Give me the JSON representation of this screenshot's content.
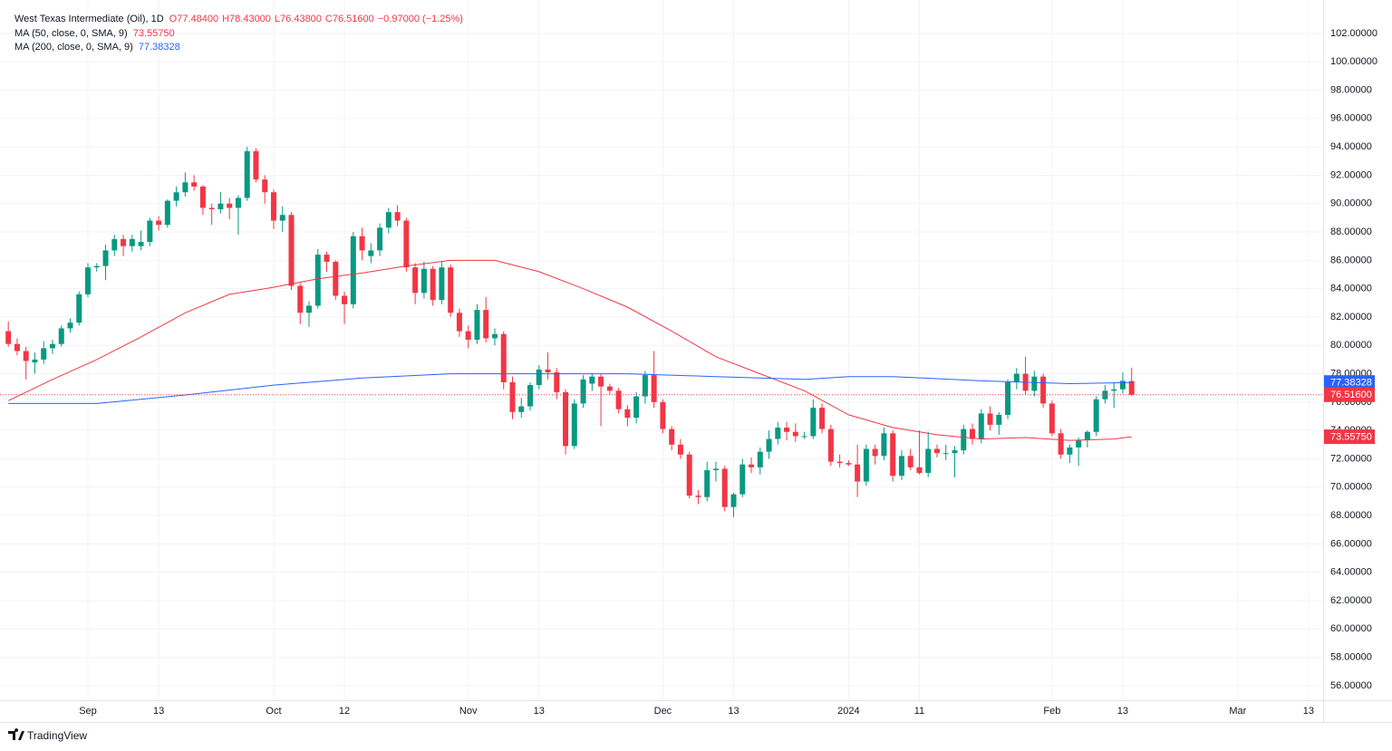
{
  "chart_data": {
    "type": "candlestick",
    "title": "West Texas Intermediate (Oil), 1D",
    "ohlc_labels": [
      "O77.48400",
      "H78.43000",
      "L76.43800",
      "C76.51600",
      "−0.97000 (−1.25%)"
    ],
    "up_color": "#089981",
    "down_color": "#f23645",
    "candles": {
      "open": [
        81.0,
        80.1,
        79.6,
        78.8,
        79.0,
        79.8,
        80.1,
        81.2,
        81.6,
        83.6,
        85.5,
        85.6,
        86.7,
        87.5,
        87.0,
        87.0,
        87.3,
        88.8,
        88.5,
        90.2,
        90.8,
        91.5,
        91.2,
        89.7,
        89.6,
        90.0,
        89.7,
        90.4,
        93.7,
        91.7,
        90.8,
        88.8,
        89.2,
        84.2,
        82.3,
        82.8,
        86.4,
        85.9,
        83.5,
        82.9,
        87.7,
        86.3,
        86.7,
        88.3,
        89.4,
        88.8,
        85.5,
        83.7,
        85.4,
        83.2,
        85.5,
        82.3,
        81.0,
        80.4,
        82.5,
        80.5,
        80.8,
        77.4,
        75.3,
        75.7,
        77.2,
        78.3,
        78.1,
        76.7,
        72.9,
        75.9,
        77.3,
        77.8,
        77.1,
        76.8,
        75.5,
        74.9,
        76.4,
        77.9,
        76.0,
        74.1,
        73.0,
        72.3,
        69.4,
        69.3,
        71.2,
        71.3,
        68.6,
        69.5,
        71.6,
        71.4,
        72.5,
        73.4,
        74.2,
        73.9,
        73.6,
        73.6,
        75.6,
        74.1,
        71.8,
        71.7,
        71.6,
        70.4,
        72.7,
        72.2,
        73.8,
        70.8,
        72.2,
        71.4,
        71.0,
        72.7,
        72.4,
        72.4,
        72.6,
        74.1,
        73.4,
        75.2,
        74.4,
        75.1,
        77.4,
        78.0,
        76.8,
        77.8,
        75.9,
        73.8,
        72.3,
        72.8,
        73.3,
        73.9,
        76.2,
        76.8,
        76.9,
        77.484
      ],
      "high": [
        81.7,
        80.5,
        79.9,
        79.5,
        80.3,
        80.4,
        81.4,
        81.9,
        83.8,
        85.8,
        85.8,
        87.1,
        87.8,
        87.8,
        87.8,
        88.1,
        89.0,
        89.1,
        90.3,
        91.2,
        92.2,
        92.0,
        91.3,
        90.0,
        90.8,
        90.4,
        90.6,
        94.0,
        93.9,
        92.0,
        91.0,
        89.8,
        89.4,
        84.4,
        83.1,
        86.8,
        86.6,
        86.0,
        83.8,
        88.0,
        88.3,
        87.2,
        88.6,
        89.7,
        89.9,
        89.0,
        85.8,
        85.9,
        85.6,
        85.9,
        85.7,
        82.6,
        81.4,
        82.9,
        83.4,
        81.2,
        81.0,
        77.8,
        76.3,
        77.4,
        78.6,
        79.5,
        78.4,
        76.9,
        76.2,
        77.9,
        78.0,
        78.0,
        77.3,
        77.0,
        75.8,
        76.7,
        78.2,
        79.6,
        76.2,
        74.3,
        73.4,
        72.5,
        69.8,
        71.8,
        71.8,
        71.5,
        69.6,
        72.0,
        72.1,
        72.8,
        74.0,
        74.6,
        74.6,
        74.5,
        73.9,
        76.2,
        75.9,
        74.4,
        72.3,
        71.9,
        73.0,
        73.0,
        73.0,
        74.2,
        74.0,
        72.6,
        72.7,
        74.0,
        73.9,
        73.0,
        73.0,
        72.9,
        74.4,
        74.5,
        75.5,
        75.7,
        75.3,
        77.6,
        78.4,
        79.2,
        78.2,
        78.0,
        76.1,
        74.1,
        73.0,
        73.5,
        74.0,
        76.4,
        77.2,
        77.4,
        78.1,
        78.43
      ],
      "low": [
        79.9,
        79.3,
        77.6,
        78.0,
        78.7,
        79.4,
        79.9,
        80.9,
        81.4,
        83.4,
        85.2,
        84.6,
        86.3,
        86.3,
        86.6,
        86.7,
        87.0,
        88.1,
        88.3,
        89.8,
        90.5,
        90.9,
        89.2,
        88.5,
        89.3,
        88.9,
        87.8,
        90.2,
        91.5,
        90.0,
        88.2,
        88.0,
        83.9,
        81.5,
        81.3,
        82.6,
        85.2,
        83.2,
        81.5,
        82.6,
        86.0,
        85.8,
        86.3,
        87.9,
        88.4,
        85.2,
        82.9,
        83.3,
        82.8,
        82.9,
        82.0,
        80.6,
        79.8,
        80.1,
        80.2,
        80.0,
        76.9,
        74.8,
        74.9,
        75.4,
        76.9,
        77.6,
        76.2,
        72.3,
        72.7,
        75.6,
        76.8,
        74.3,
        76.5,
        75.2,
        74.3,
        74.5,
        75.9,
        75.6,
        73.8,
        72.6,
        72.0,
        69.2,
        68.8,
        69.0,
        70.4,
        68.3,
        67.9,
        69.3,
        71.0,
        70.9,
        72.0,
        73.0,
        73.3,
        73.2,
        73.4,
        73.4,
        73.8,
        71.5,
        71.4,
        71.5,
        69.3,
        70.1,
        71.6,
        71.9,
        70.4,
        70.5,
        71.2,
        70.9,
        70.7,
        72.1,
        71.9,
        70.7,
        72.3,
        73.0,
        73.1,
        74.0,
        73.7,
        74.8,
        76.9,
        76.5,
        76.4,
        75.6,
        73.6,
        72.0,
        71.7,
        71.5,
        72.8,
        73.6,
        75.9,
        75.6,
        76.6,
        76.438
      ],
      "close": [
        80.1,
        79.6,
        78.9,
        79.0,
        79.8,
        80.1,
        81.2,
        81.6,
        83.6,
        85.5,
        85.6,
        86.7,
        87.5,
        87.0,
        87.5,
        87.3,
        88.8,
        88.5,
        90.2,
        90.8,
        91.5,
        91.2,
        89.7,
        89.6,
        90.0,
        89.7,
        90.4,
        93.7,
        91.7,
        90.8,
        88.8,
        89.2,
        84.2,
        82.3,
        82.8,
        86.4,
        85.9,
        83.5,
        82.9,
        87.7,
        86.7,
        86.7,
        88.3,
        89.4,
        88.8,
        85.5,
        83.7,
        85.4,
        83.2,
        85.5,
        82.3,
        81.0,
        80.4,
        82.5,
        80.5,
        80.8,
        77.4,
        75.3,
        75.7,
        77.2,
        78.3,
        78.1,
        76.7,
        72.9,
        75.9,
        77.6,
        77.8,
        77.1,
        76.8,
        75.5,
        74.9,
        76.4,
        77.9,
        76.0,
        74.1,
        73.0,
        72.3,
        69.4,
        69.3,
        71.2,
        71.3,
        68.6,
        69.5,
        71.6,
        71.4,
        72.5,
        73.4,
        74.2,
        73.9,
        73.6,
        73.6,
        75.6,
        74.1,
        71.8,
        71.7,
        71.6,
        70.4,
        72.7,
        72.2,
        73.8,
        70.8,
        72.2,
        71.4,
        71.0,
        72.7,
        72.4,
        72.4,
        72.6,
        74.1,
        73.4,
        75.2,
        74.4,
        75.1,
        77.4,
        78.0,
        76.8,
        77.8,
        75.9,
        73.8,
        72.3,
        72.8,
        73.3,
        73.9,
        76.2,
        76.8,
        76.9,
        77.5,
        76.516
      ]
    },
    "last_label": "76.51600",
    "series": [
      {
        "name": "MA (50, close, 0, SMA, 9)",
        "color": "#f23645",
        "x": [
          0,
          5,
          10,
          15,
          20,
          25,
          30,
          35,
          40,
          45,
          50,
          55,
          60,
          65,
          70,
          75,
          80,
          85,
          90,
          95,
          100,
          105,
          110,
          115,
          120,
          125,
          127
        ],
        "values": [
          76.1,
          77.6,
          79.0,
          80.6,
          82.3,
          83.6,
          84.1,
          84.7,
          85.1,
          85.6,
          86.0,
          86.0,
          85.2,
          84.0,
          82.7,
          81.0,
          79.2,
          78.0,
          76.8,
          75.1,
          74.2,
          73.7,
          73.4,
          73.5,
          73.3,
          73.4,
          73.5575
        ],
        "last_label": "73.55750"
      },
      {
        "name": "MA (200, close, 0, SMA, 9)",
        "color": "#2962ff",
        "x": [
          0,
          10,
          20,
          30,
          40,
          50,
          60,
          70,
          80,
          90,
          95,
          100,
          110,
          120,
          127
        ],
        "values": [
          75.9,
          75.9,
          76.5,
          77.2,
          77.7,
          78.0,
          78.0,
          78.0,
          77.8,
          77.6,
          77.8,
          77.8,
          77.5,
          77.3,
          77.38328
        ],
        "last_label": "77.38328"
      }
    ],
    "xlim": [
      -0.94,
      148.65
    ],
    "xticks": [
      {
        "value": 9,
        "label": "Sep"
      },
      {
        "value": 17,
        "label": "13"
      },
      {
        "value": 30,
        "label": "Oct"
      },
      {
        "value": 38,
        "label": "12"
      },
      {
        "value": 52,
        "label": "Nov"
      },
      {
        "value": 60,
        "label": "13"
      },
      {
        "value": 74,
        "label": "Dec"
      },
      {
        "value": 82,
        "label": "13"
      },
      {
        "value": 95,
        "label": "2024"
      },
      {
        "value": 103,
        "label": "11"
      },
      {
        "value": 118,
        "label": "Feb"
      },
      {
        "value": 126,
        "label": "13"
      },
      {
        "value": 139,
        "label": "Mar"
      },
      {
        "value": 147,
        "label": "13"
      }
    ],
    "ylim": [
      54.97,
      104.36
    ],
    "yticks": [
      {
        "value": 56,
        "label": "56.00000"
      },
      {
        "value": 58,
        "label": "58.00000"
      },
      {
        "value": 60,
        "label": "60.00000"
      },
      {
        "value": 62,
        "label": "62.00000"
      },
      {
        "value": 64,
        "label": "64.00000"
      },
      {
        "value": 66,
        "label": "66.00000"
      },
      {
        "value": 68,
        "label": "68.00000"
      },
      {
        "value": 70,
        "label": "70.00000"
      },
      {
        "value": 72,
        "label": "72.00000"
      },
      {
        "value": 74,
        "label": "74.00000"
      },
      {
        "value": 76,
        "label": "76.00000"
      },
      {
        "value": 78,
        "label": "78.00000"
      },
      {
        "value": 80,
        "label": "80.00000"
      },
      {
        "value": 82,
        "label": "82.00000"
      },
      {
        "value": 84,
        "label": "84.00000"
      },
      {
        "value": 86,
        "label": "86.00000"
      },
      {
        "value": 88,
        "label": "88.00000"
      },
      {
        "value": 90,
        "label": "90.00000"
      },
      {
        "value": 92,
        "label": "92.00000"
      },
      {
        "value": 94,
        "label": "94.00000"
      },
      {
        "value": 96,
        "label": "96.00000"
      },
      {
        "value": 98,
        "label": "98.00000"
      },
      {
        "value": 100,
        "label": "100.00000"
      },
      {
        "value": 102,
        "label": "102.00000"
      }
    ],
    "grid": true,
    "brand": "TradingView"
  }
}
